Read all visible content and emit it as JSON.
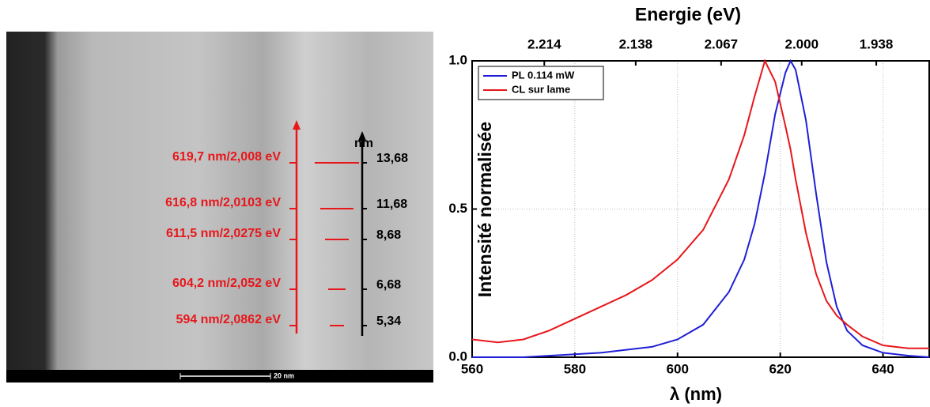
{
  "image_panel": {
    "annotations": [
      {
        "label": "619,7 nm/2,008 eV",
        "scale": "13,68"
      },
      {
        "label": "616,8 nm/2,0103 eV",
        "scale": "11,68"
      },
      {
        "label": "611,5 nm/2,0275 eV",
        "scale": "8,68"
      },
      {
        "label": "604,2 nm/2,052 eV",
        "scale": "6,68"
      },
      {
        "label": "594 nm/2,0862 eV",
        "scale": "5,34"
      }
    ],
    "scale_unit": "nm",
    "scale_bar": "20 nm"
  },
  "chart_data": {
    "type": "line",
    "x_label": "λ (nm)",
    "y_label": "Intensité normalisée",
    "x2_label": "Energie (eV)",
    "x": [
      560,
      565,
      570,
      575,
      580,
      585,
      590,
      595,
      600,
      605,
      610,
      613,
      615,
      617,
      619,
      621,
      622,
      623,
      625,
      627,
      629,
      631,
      633,
      636,
      640,
      645,
      649
    ],
    "series": [
      {
        "name": "PL 0.114 mW",
        "color": "#1f1fd6",
        "values": [
          0,
          0,
          0,
          0.005,
          0.01,
          0.015,
          0.025,
          0.035,
          0.06,
          0.11,
          0.22,
          0.33,
          0.45,
          0.62,
          0.82,
          0.96,
          1.0,
          0.97,
          0.8,
          0.55,
          0.32,
          0.17,
          0.09,
          0.04,
          0.015,
          0.005,
          0
        ]
      },
      {
        "name": "CL sur lame",
        "color": "#e8161b",
        "values": [
          0.06,
          0.05,
          0.06,
          0.09,
          0.13,
          0.17,
          0.21,
          0.26,
          0.33,
          0.43,
          0.6,
          0.75,
          0.88,
          1.0,
          0.93,
          0.78,
          0.7,
          0.6,
          0.42,
          0.28,
          0.19,
          0.14,
          0.11,
          0.07,
          0.04,
          0.03,
          0.03
        ]
      }
    ],
    "xlim": [
      560,
      649
    ],
    "xticks": [
      560,
      580,
      600,
      620,
      640
    ],
    "ylim": [
      0,
      1.0
    ],
    "yticks": [
      {
        "value": 0,
        "label": "0.0"
      },
      0.5,
      {
        "value": 1.0,
        "label": "1.0"
      }
    ],
    "x2lim": [
      2.274,
      1.894
    ],
    "x2ticks": [
      2.214,
      2.138,
      2.067,
      {
        "value": 2.0,
        "label": "2.000"
      },
      1.938
    ],
    "grid": true,
    "legend": "top-left"
  }
}
